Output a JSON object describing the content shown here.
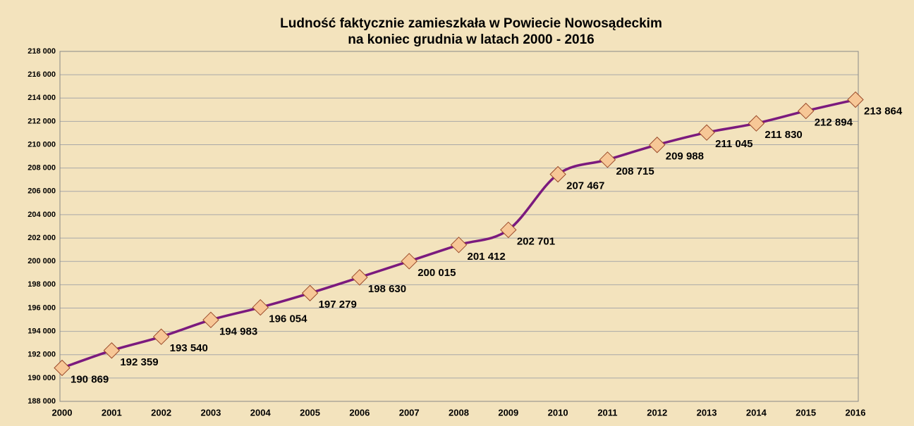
{
  "chart_data": {
    "type": "line",
    "title": [
      "Ludność faktycznie zamieszkała w Powiecie Nowosądeckim",
      "na koniec grudnia w latach 2000 - 2016"
    ],
    "categories": [
      "2000",
      "2001",
      "2002",
      "2003",
      "2004",
      "2005",
      "2006",
      "2007",
      "2008",
      "2009",
      "2010",
      "2011",
      "2012",
      "2013",
      "2014",
      "2015",
      "2016"
    ],
    "series": [
      {
        "color": "#7b1a7e",
        "marker_color": "#f7c796",
        "values": [
          190869,
          192359,
          193540,
          194983,
          196054,
          197279,
          198630,
          200015,
          201412,
          202701,
          207467,
          208715,
          209988,
          211045,
          211830,
          212894,
          213864
        ],
        "value_labels": [
          "190 869",
          "192 359",
          "193 540",
          "194 983",
          "196 054",
          "197 279",
          "198 630",
          "200 015",
          "201 412",
          "202 701",
          "207 467",
          "208 715",
          "209 988",
          "211 045",
          "211 830",
          "212 894",
          "213 864"
        ]
      }
    ],
    "ylim": [
      188000,
      218000
    ],
    "yticks": [
      {
        "value": 188000,
        "label": "188 000"
      },
      {
        "value": 190000,
        "label": "190 000"
      },
      {
        "value": 192000,
        "label": "192 000"
      },
      {
        "value": 194000,
        "label": "194 000"
      },
      {
        "value": 196000,
        "label": "196 000"
      },
      {
        "value": 198000,
        "label": "198 000"
      },
      {
        "value": 200000,
        "label": "200 000"
      },
      {
        "value": 202000,
        "label": "202 000"
      },
      {
        "value": 204000,
        "label": "204 000"
      },
      {
        "value": 206000,
        "label": "206 000"
      },
      {
        "value": 208000,
        "label": "208 000"
      },
      {
        "value": 210000,
        "label": "210 000"
      },
      {
        "value": 212000,
        "label": "212 000"
      },
      {
        "value": 214000,
        "label": "214 000"
      },
      {
        "value": 216000,
        "label": "216 000"
      },
      {
        "value": 218000,
        "label": "218 000"
      }
    ],
    "grid": true
  }
}
